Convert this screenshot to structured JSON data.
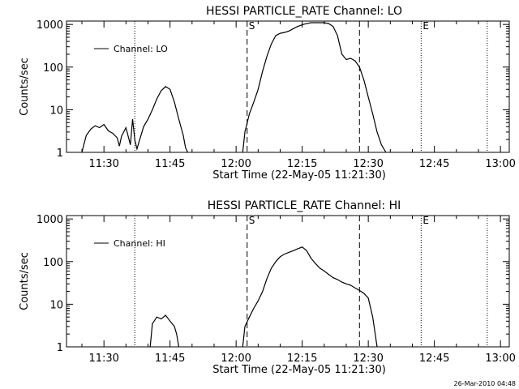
{
  "footer": {
    "timestamp": "26-Mar-2010 04:48"
  },
  "colors": {
    "ink": "#000000",
    "background": "#ffffff"
  },
  "chart_data": [
    {
      "type": "line",
      "title": "HESSI PARTICLE_RATE Channel: LO",
      "xlabel": "Start Time (22-May-05 11:21:30)",
      "ylabel": "Counts/sec",
      "y_scale": "log",
      "xlim": [
        "11:21:30",
        "13:02:00"
      ],
      "ylim": [
        1,
        1200
      ],
      "x_ticks": [
        "11:30",
        "11:45",
        "12:00",
        "12:15",
        "12:30",
        "12:45",
        "13:00"
      ],
      "y_ticks": [
        "1",
        "10",
        "100",
        "1000"
      ],
      "legend": {
        "entries": [
          "Channel: LO"
        ],
        "placement": "top-left"
      },
      "markers": [
        {
          "label": "",
          "time": "11:37:00",
          "style": "dotted"
        },
        {
          "label": "S",
          "time": "12:02:30",
          "style": "dashed"
        },
        {
          "label": "",
          "time": "12:28:00",
          "style": "dashed"
        },
        {
          "label": "E",
          "time": "12:42:00",
          "style": "dotted"
        },
        {
          "label": "",
          "time": "12:57:00",
          "style": "dotted"
        }
      ],
      "series": [
        {
          "name": "Channel: LO",
          "segments": [
            {
              "x": [
                "11:25:00",
                "11:25:30",
                "11:26:00",
                "11:27:00",
                "11:28:00",
                "11:29:00",
                "11:30:00",
                "11:31:00",
                "11:32:00",
                "11:33:00",
                "11:33:30",
                "11:34:00",
                "11:35:00",
                "11:36:00",
                "11:36:30",
                "11:37:00",
                "11:37:30",
                "11:38:00",
                "11:39:00",
                "11:40:00",
                "11:41:00",
                "11:42:00",
                "11:43:00",
                "11:44:00",
                "11:45:00",
                "11:46:00",
                "11:47:00",
                "11:48:00",
                "11:48:30",
                "11:49:00"
              ],
              "y": [
                1,
                1.6,
                2.5,
                3.5,
                4.2,
                3.8,
                4.5,
                3.2,
                2.8,
                2.2,
                1.4,
                2.4,
                3.8,
                1.5,
                6.0,
                2.0,
                1.2,
                1.8,
                4.0,
                6.0,
                10,
                18,
                28,
                35,
                30,
                15,
                6,
                2.5,
                1.3,
                1
              ]
            },
            {
              "x": [
                "12:01:30",
                "12:02:00",
                "12:03:00",
                "12:04:00",
                "12:05:00",
                "12:06:00",
                "12:07:00",
                "12:08:00",
                "12:09:00",
                "12:10:00",
                "12:11:00",
                "12:12:00",
                "12:13:00",
                "12:14:00",
                "12:15:00",
                "12:16:00",
                "12:17:00",
                "12:18:00",
                "12:19:00",
                "12:20:00",
                "12:21:00",
                "12:22:00",
                "12:23:00",
                "12:24:00",
                "12:25:00",
                "12:26:00",
                "12:27:00",
                "12:28:00",
                "12:29:00",
                "12:30:00",
                "12:31:00",
                "12:32:00",
                "12:33:00",
                "12:34:00"
              ],
              "y": [
                1,
                3,
                8,
                15,
                30,
                80,
                180,
                350,
                550,
                620,
                650,
                700,
                800,
                900,
                980,
                1050,
                1100,
                1100,
                1100,
                1100,
                1050,
                900,
                550,
                200,
                150,
                160,
                140,
                100,
                50,
                20,
                8,
                3,
                1.5,
                1
              ]
            }
          ]
        }
      ]
    },
    {
      "type": "line",
      "title": "HESSI PARTICLE_RATE Channel: HI",
      "xlabel": "Start Time (22-May-05 11:21:30)",
      "ylabel": "Counts/sec",
      "y_scale": "log",
      "xlim": [
        "11:21:30",
        "13:02:00"
      ],
      "ylim": [
        1,
        1200
      ],
      "x_ticks": [
        "11:30",
        "11:45",
        "12:00",
        "12:15",
        "12:30",
        "12:45",
        "13:00"
      ],
      "y_ticks": [
        "1",
        "10",
        "100",
        "1000"
      ],
      "legend": {
        "entries": [
          "Channel: HI"
        ],
        "placement": "top-left"
      },
      "markers": [
        {
          "label": "",
          "time": "11:37:00",
          "style": "dotted"
        },
        {
          "label": "S",
          "time": "12:02:30",
          "style": "dashed"
        },
        {
          "label": "",
          "time": "12:28:00",
          "style": "dashed"
        },
        {
          "label": "E",
          "time": "12:42:00",
          "style": "dotted"
        },
        {
          "label": "",
          "time": "12:57:00",
          "style": "dotted"
        }
      ],
      "series": [
        {
          "name": "Channel: HI",
          "segments": [
            {
              "x": [
                "11:40:30",
                "11:41:00",
                "11:42:00",
                "11:43:00",
                "11:44:00",
                "11:45:00",
                "11:46:00",
                "11:46:30",
                "11:47:00"
              ],
              "y": [
                1,
                3.5,
                5,
                4.5,
                5.5,
                4,
                3,
                2,
                1
              ]
            },
            {
              "x": [
                "12:01:30",
                "12:02:00",
                "12:03:00",
                "12:04:00",
                "12:05:00",
                "12:06:00",
                "12:07:00",
                "12:08:00",
                "12:09:00",
                "12:10:00",
                "12:11:00",
                "12:12:00",
                "12:13:00",
                "12:14:00",
                "12:15:00",
                "12:16:00",
                "12:17:00",
                "12:18:00",
                "12:19:00",
                "12:20:00",
                "12:21:00",
                "12:22:00",
                "12:23:00",
                "12:24:00",
                "12:25:00",
                "12:26:00",
                "12:27:00",
                "12:28:00",
                "12:29:00",
                "12:30:00",
                "12:31:00",
                "12:32:00"
              ],
              "y": [
                1,
                3,
                5,
                8,
                12,
                20,
                40,
                70,
                100,
                130,
                150,
                165,
                180,
                200,
                220,
                180,
                120,
                90,
                70,
                60,
                50,
                42,
                38,
                33,
                30,
                28,
                24,
                21,
                18,
                14,
                5,
                1
              ]
            }
          ]
        }
      ]
    }
  ]
}
